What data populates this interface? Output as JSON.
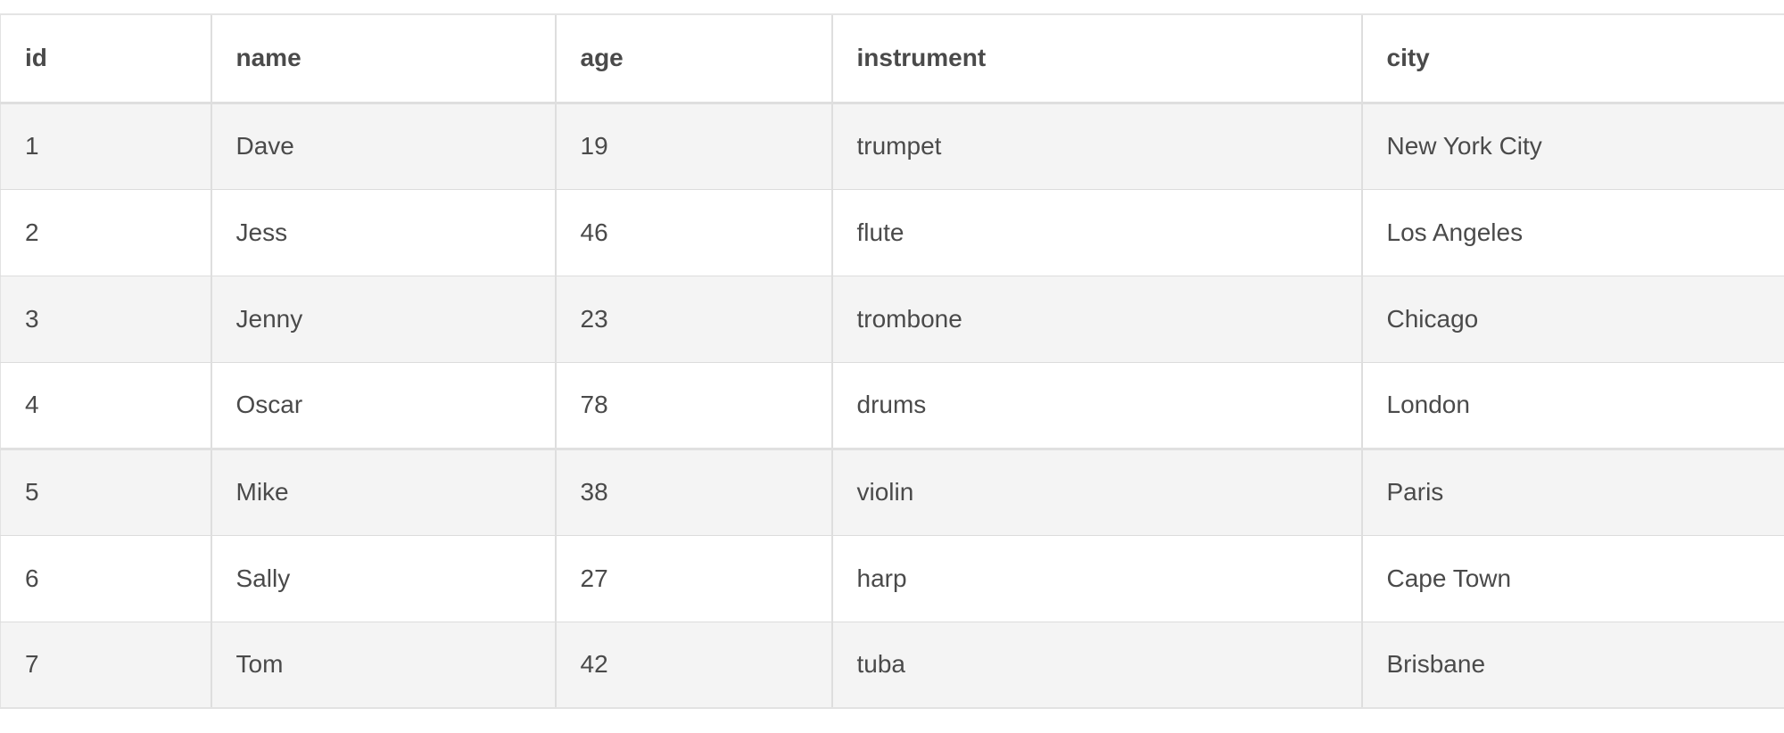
{
  "table": {
    "headers": {
      "id": "id",
      "name": "name",
      "age": "age",
      "instrument": "instrument",
      "city": "city"
    },
    "rows": [
      {
        "id": "1",
        "name": "Dave",
        "age": "19",
        "instrument": "trumpet",
        "city": "New York City"
      },
      {
        "id": "2",
        "name": "Jess",
        "age": "46",
        "instrument": "flute",
        "city": "Los Angeles"
      },
      {
        "id": "3",
        "name": "Jenny",
        "age": "23",
        "instrument": "trombone",
        "city": "Chicago"
      },
      {
        "id": "4",
        "name": "Oscar",
        "age": "78",
        "instrument": "drums",
        "city": "London"
      },
      {
        "id": "5",
        "name": "Mike",
        "age": "38",
        "instrument": "violin",
        "city": "Paris"
      },
      {
        "id": "6",
        "name": "Sally",
        "age": "27",
        "instrument": "harp",
        "city": "Cape Town"
      },
      {
        "id": "7",
        "name": "Tom",
        "age": "42",
        "instrument": "tuba",
        "city": "Brisbane"
      }
    ]
  },
  "colors": {
    "text": "#4a4a4a",
    "row_stripe": "#f4f4f4",
    "row_plain": "#ffffff",
    "border": "#dedede"
  }
}
